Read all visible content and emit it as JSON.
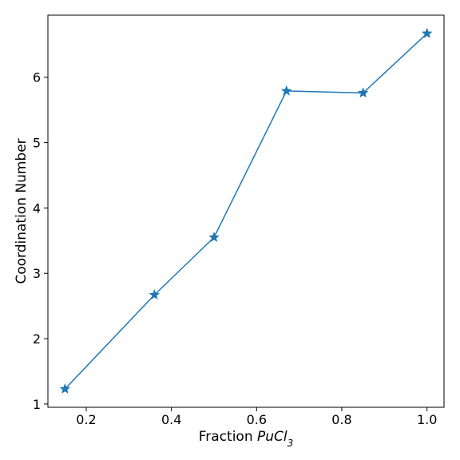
{
  "chart_data": {
    "type": "line",
    "title": "",
    "xlabel": {
      "prefix": "Fraction ",
      "math_main": "PuCl",
      "math_sub": "3"
    },
    "ylabel": "Coordination Number",
    "xlim": [
      0.11,
      1.04
    ],
    "ylim": [
      0.95,
      6.95
    ],
    "xticks": [
      0.2,
      0.4,
      0.6,
      0.8,
      1.0
    ],
    "xtick_labels": [
      "0.2",
      "0.4",
      "0.6",
      "0.8",
      "1.0"
    ],
    "yticks": [
      1,
      2,
      3,
      4,
      5,
      6
    ],
    "ytick_labels": [
      "1",
      "2",
      "3",
      "4",
      "5",
      "6"
    ],
    "grid": false,
    "series": [
      {
        "marker": "star",
        "color": "#1f77b4",
        "x": [
          0.15,
          0.36,
          0.5,
          0.67,
          0.85,
          1.0
        ],
        "y": [
          1.23,
          2.67,
          3.55,
          5.79,
          5.76,
          6.67
        ]
      }
    ]
  }
}
